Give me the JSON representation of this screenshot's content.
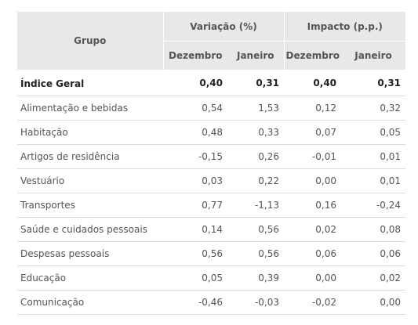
{
  "table": {
    "header": {
      "group_label": "Grupo",
      "variacao_label": "Variação (%)",
      "impacto_label": "Impacto (p.p.)",
      "sub": [
        "Dezembro",
        "Janeiro",
        "Dezembro",
        "Janeiro"
      ]
    },
    "rows": [
      {
        "name": "Índice Geral",
        "var_dez": "0,40",
        "var_jan": "0,31",
        "imp_dez": "0,40",
        "imp_jan": "0,31"
      },
      {
        "name": "Alimentação e bebidas",
        "var_dez": "0,54",
        "var_jan": "1,53",
        "imp_dez": "0,12",
        "imp_jan": "0,32"
      },
      {
        "name": "Habitação",
        "var_dez": "0,48",
        "var_jan": "0,33",
        "imp_dez": "0,07",
        "imp_jan": "0,05"
      },
      {
        "name": "Artigos de residência",
        "var_dez": "-0,15",
        "var_jan": "0,26",
        "imp_dez": "-0,01",
        "imp_jan": "0,01"
      },
      {
        "name": "Vestuário",
        "var_dez": "0,03",
        "var_jan": "0,22",
        "imp_dez": "0,00",
        "imp_jan": "0,01"
      },
      {
        "name": "Transportes",
        "var_dez": "0,77",
        "var_jan": "-1,13",
        "imp_dez": "0,16",
        "imp_jan": "-0,24"
      },
      {
        "name": "Saúde e cuidados pessoais",
        "var_dez": "0,14",
        "var_jan": "0,56",
        "imp_dez": "0,02",
        "imp_jan": "0,08"
      },
      {
        "name": "Despesas pessoais",
        "var_dez": "0,56",
        "var_jan": "0,56",
        "imp_dez": "0,06",
        "imp_jan": "0,06"
      },
      {
        "name": "Educação",
        "var_dez": "0,05",
        "var_jan": "0,39",
        "imp_dez": "0,00",
        "imp_jan": "0,02"
      },
      {
        "name": "Comunicação",
        "var_dez": "-0,46",
        "var_jan": "-0,03",
        "imp_dez": "-0,02",
        "imp_jan": "0,00"
      }
    ]
  }
}
